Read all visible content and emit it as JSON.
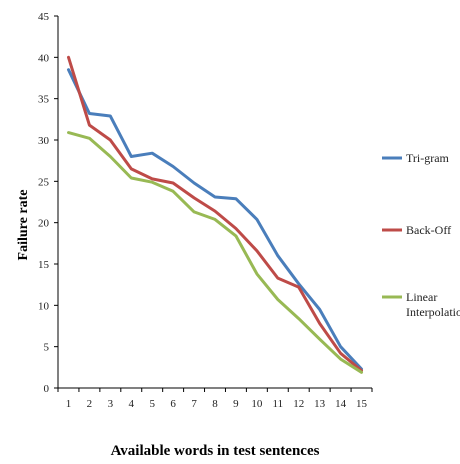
{
  "chart_data": {
    "type": "line",
    "title": "",
    "xlabel": "Available words in test sentences",
    "ylabel": "Failure rate",
    "x": [
      1,
      2,
      3,
      4,
      5,
      6,
      7,
      8,
      9,
      10,
      11,
      12,
      13,
      14,
      15
    ],
    "ylim": [
      0,
      45
    ],
    "yticks": [
      0,
      5,
      10,
      15,
      20,
      25,
      30,
      35,
      40,
      45
    ],
    "grid": false,
    "legend_position": "right",
    "series": [
      {
        "name": "Tri-gram",
        "color": "#4a7ebb",
        "values": [
          38.5,
          33.2,
          32.9,
          28.0,
          28.4,
          26.8,
          24.8,
          23.1,
          22.9,
          20.4,
          16.0,
          12.6,
          9.5,
          5.0,
          2.3
        ]
      },
      {
        "name": "Back-Off",
        "color": "#be4b48",
        "values": [
          40.0,
          31.8,
          30.0,
          26.5,
          25.3,
          24.8,
          23.0,
          21.4,
          19.3,
          16.6,
          13.3,
          12.2,
          7.8,
          4.2,
          2.1
        ]
      },
      {
        "name": "Linear Interpolation",
        "legend_lines": [
          "Linear",
          "Interpolation"
        ],
        "color": "#98b954",
        "values": [
          30.9,
          30.2,
          28.0,
          25.4,
          24.9,
          23.8,
          21.3,
          20.4,
          18.4,
          13.8,
          10.7,
          8.4,
          5.9,
          3.5,
          1.9
        ]
      }
    ]
  }
}
